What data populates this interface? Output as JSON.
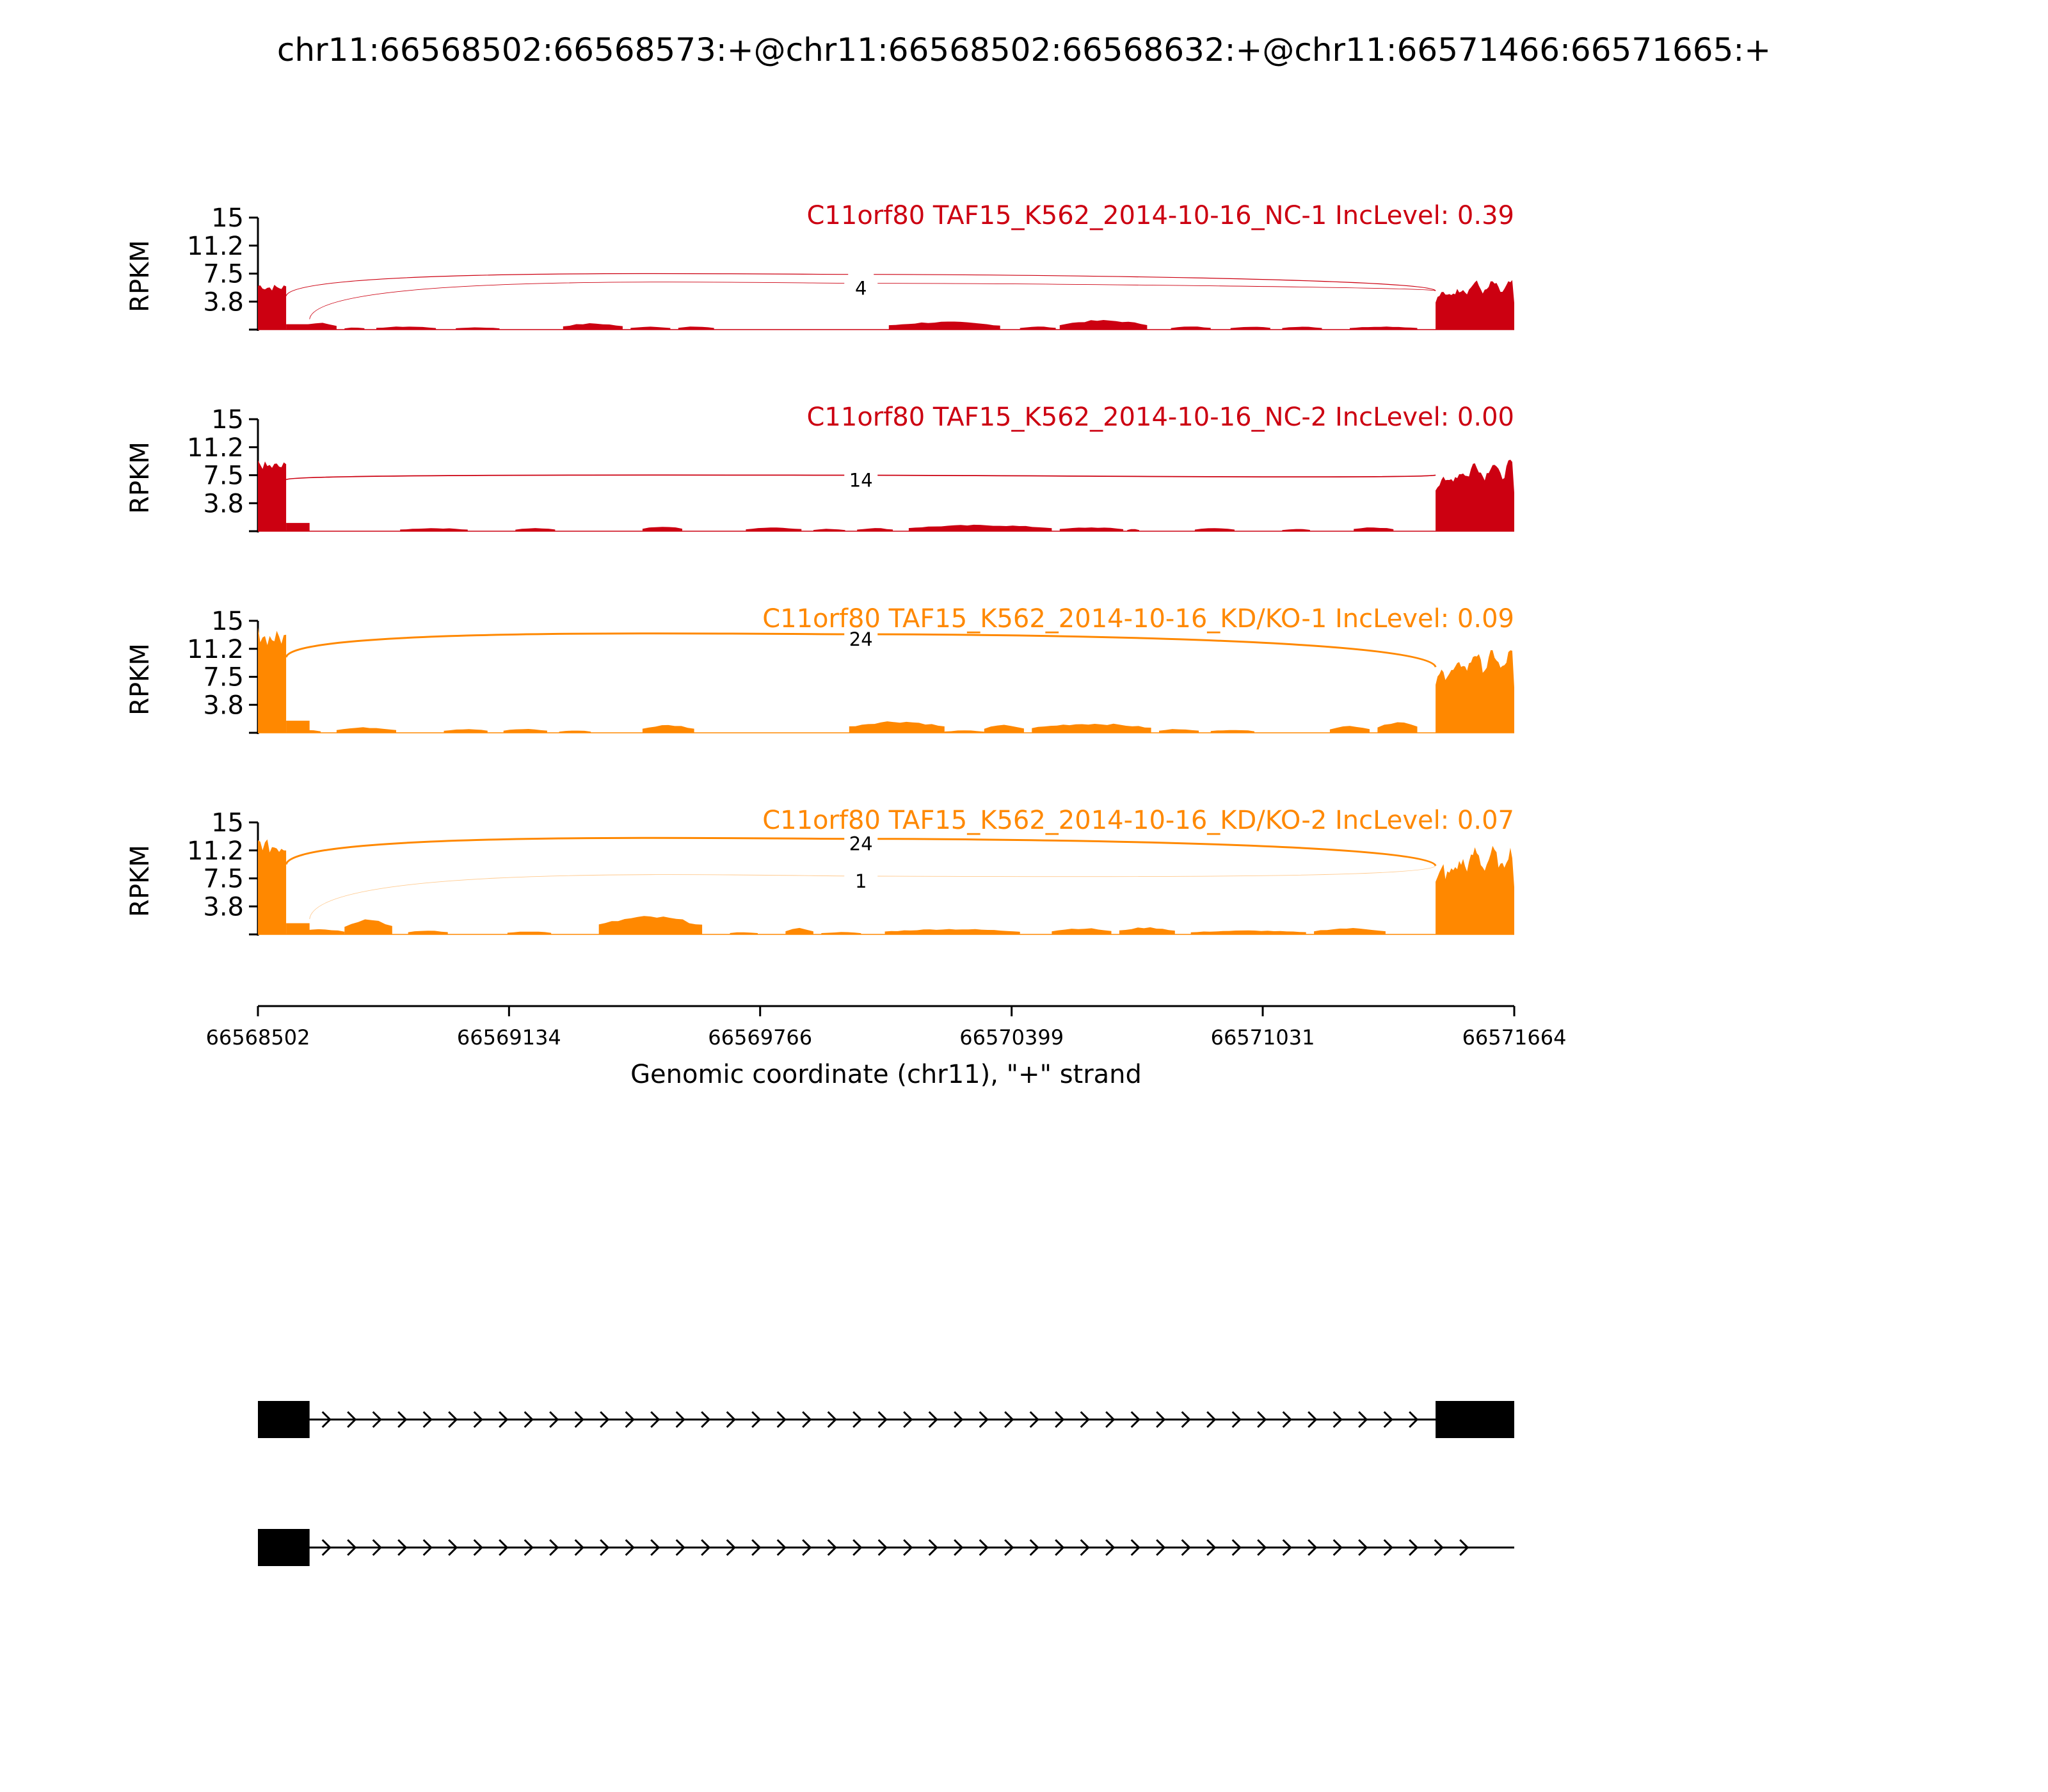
{
  "title": "chr11:66568502:66568573:+@chr11:66568502:66568632:+@chr11:66571466:66571665:+",
  "colors": {
    "nc": "#cc0011",
    "kd": "#ff8800",
    "axis": "#000000"
  },
  "chart_data": {
    "type": "area",
    "xlabel": "Genomic coordinate (chr11), \"+\" strand",
    "ylabel": "RPKM",
    "xlim": [
      66568502,
      66571664
    ],
    "x_ticks": [
      "66568502",
      "66569134",
      "66569766",
      "66570399",
      "66571031",
      "66571664"
    ],
    "y_ticks": [
      "15",
      "11.2",
      "7.5",
      "3.8"
    ],
    "ylim": [
      0,
      15
    ],
    "panels": [
      {
        "label": "C11orf80 TAF15_K562_2014-10-16_NC-1 IncLevel: 0.39",
        "group": "nc",
        "exon1_height": 6.0,
        "exon3_height": 6.5,
        "intron_blocks": [
          {
            "start": 66568612,
            "end": 66568700,
            "height": 0.9
          },
          {
            "start": 66568720,
            "end": 66568770,
            "height": 0.3
          },
          {
            "start": 66568800,
            "end": 66568950,
            "height": 0.4
          },
          {
            "start": 66569000,
            "end": 66569110,
            "height": 0.3
          },
          {
            "start": 66569270,
            "end": 66569420,
            "height": 0.8
          },
          {
            "start": 66569440,
            "end": 66569540,
            "height": 0.4
          },
          {
            "start": 66569560,
            "end": 66569650,
            "height": 0.4
          },
          {
            "start": 66570090,
            "end": 66570370,
            "height": 1.0
          },
          {
            "start": 66570420,
            "end": 66570510,
            "height": 0.4
          },
          {
            "start": 66570520,
            "end": 66570740,
            "height": 1.2
          },
          {
            "start": 66570800,
            "end": 66570900,
            "height": 0.4
          },
          {
            "start": 66570950,
            "end": 66571050,
            "height": 0.4
          },
          {
            "start": 66571080,
            "end": 66571180,
            "height": 0.4
          },
          {
            "start": 66571250,
            "end": 66571420,
            "height": 0.4
          }
        ],
        "junctions": [
          {
            "from": 66568573,
            "to": 66571466,
            "count": "",
            "peak": 7.4
          },
          {
            "from": 66568632,
            "to": 66571466,
            "count": "4",
            "peak": 6.2
          }
        ]
      },
      {
        "label": "C11orf80 TAF15_K562_2014-10-16_NC-2 IncLevel: 0.00",
        "group": "nc",
        "exon1_height": 9.2,
        "exon3_height": 9.4,
        "intron_blocks": [
          {
            "start": 66568590,
            "end": 66568630,
            "height": 0.4
          },
          {
            "start": 66568860,
            "end": 66569030,
            "height": 0.4
          },
          {
            "start": 66569150,
            "end": 66569250,
            "height": 0.4
          },
          {
            "start": 66569470,
            "end": 66569570,
            "height": 0.6
          },
          {
            "start": 66569730,
            "end": 66569870,
            "height": 0.5
          },
          {
            "start": 66569900,
            "end": 66569980,
            "height": 0.3
          },
          {
            "start": 66570010,
            "end": 66570100,
            "height": 0.4
          },
          {
            "start": 66570140,
            "end": 66570500,
            "height": 0.8
          },
          {
            "start": 66570520,
            "end": 66570680,
            "height": 0.5
          },
          {
            "start": 66570690,
            "end": 66570720,
            "height": 0.3
          },
          {
            "start": 66570860,
            "end": 66570960,
            "height": 0.4
          },
          {
            "start": 66571080,
            "end": 66571150,
            "height": 0.3
          },
          {
            "start": 66571260,
            "end": 66571360,
            "height": 0.5
          }
        ],
        "junctions": [
          {
            "from": 66568573,
            "to": 66571466,
            "count": "14",
            "peak": 7.5
          }
        ]
      },
      {
        "label": "C11orf80 TAF15_K562_2014-10-16_KD/KO-1 IncLevel: 0.09",
        "group": "kd",
        "exon1_height": 13.5,
        "exon3_height": 11.0,
        "intron_blocks": [
          {
            "start": 66568590,
            "end": 66568660,
            "height": 0.4
          },
          {
            "start": 66568700,
            "end": 66568850,
            "height": 0.7
          },
          {
            "start": 66568970,
            "end": 66569080,
            "height": 0.5
          },
          {
            "start": 66569120,
            "end": 66569230,
            "height": 0.5
          },
          {
            "start": 66569260,
            "end": 66569340,
            "height": 0.3
          },
          {
            "start": 66569470,
            "end": 66569600,
            "height": 1.0
          },
          {
            "start": 66569990,
            "end": 66570230,
            "height": 1.5
          },
          {
            "start": 66570230,
            "end": 66570330,
            "height": 0.3
          },
          {
            "start": 66570330,
            "end": 66570430,
            "height": 1.0
          },
          {
            "start": 66570450,
            "end": 66570750,
            "height": 1.2
          },
          {
            "start": 66570770,
            "end": 66570870,
            "height": 0.5
          },
          {
            "start": 66570900,
            "end": 66571010,
            "height": 0.4
          },
          {
            "start": 66571200,
            "end": 66571300,
            "height": 0.9
          },
          {
            "start": 66571320,
            "end": 66571420,
            "height": 1.4
          }
        ],
        "junctions": [
          {
            "from": 66568573,
            "to": 66571466,
            "count": "24",
            "peak": 13.2
          }
        ]
      },
      {
        "label": "C11orf80 TAF15_K562_2014-10-16_KD/KO-2 IncLevel: 0.07",
        "group": "kd",
        "exon1_height": 12.5,
        "exon3_height": 11.5,
        "intron_blocks": [
          {
            "start": 66568590,
            "end": 66568720,
            "height": 0.7
          },
          {
            "start": 66568720,
            "end": 66568840,
            "height": 2.0
          },
          {
            "start": 66568880,
            "end": 66568980,
            "height": 0.5
          },
          {
            "start": 66569130,
            "end": 66569240,
            "height": 0.4
          },
          {
            "start": 66569360,
            "end": 66569620,
            "height": 2.3
          },
          {
            "start": 66569690,
            "end": 66569760,
            "height": 0.3
          },
          {
            "start": 66569830,
            "end": 66569900,
            "height": 0.8
          },
          {
            "start": 66569920,
            "end": 66570020,
            "height": 0.3
          },
          {
            "start": 66570080,
            "end": 66570420,
            "height": 0.7
          },
          {
            "start": 66570500,
            "end": 66570650,
            "height": 0.8
          },
          {
            "start": 66570670,
            "end": 66570810,
            "height": 0.9
          },
          {
            "start": 66570850,
            "end": 66571140,
            "height": 0.5
          },
          {
            "start": 66571160,
            "end": 66571340,
            "height": 0.8
          }
        ],
        "junctions": [
          {
            "from": 66568573,
            "to": 66571466,
            "count": "24",
            "peak": 12.8
          },
          {
            "from": 66568632,
            "to": 66571466,
            "count": "1",
            "peak": 7.8
          }
        ]
      }
    ],
    "isoforms": [
      {
        "exons": [
          {
            "start": 66568502,
            "end": 66568632
          },
          {
            "start": 66571466,
            "end": 66571664
          }
        ]
      },
      {
        "exons": [
          {
            "start": 66568502,
            "end": 66568632
          }
        ]
      }
    ]
  }
}
